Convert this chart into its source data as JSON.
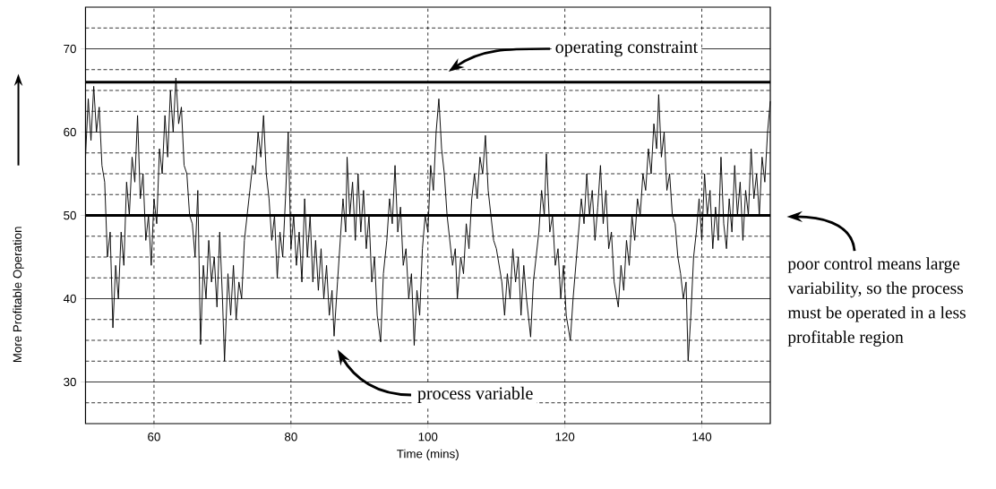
{
  "chart_data": {
    "type": "line",
    "xlabel": "Time (mins)",
    "ylabel": "More Profitable Operation",
    "color": "#000000",
    "xlim": [
      50,
      150
    ],
    "ylim": [
      25,
      75
    ],
    "xticks": [
      60,
      80,
      100,
      120,
      140
    ],
    "yticks": [
      {
        "value": 27.5,
        "label": null
      },
      30,
      {
        "value": 32.5,
        "label": null
      },
      {
        "value": 35,
        "label": null
      },
      {
        "value": 37.5,
        "label": null
      },
      40,
      {
        "value": 42.5,
        "label": null
      },
      {
        "value": 45,
        "label": null
      },
      {
        "value": 47.5,
        "label": null
      },
      50,
      {
        "value": 52.5,
        "label": null
      },
      {
        "value": 55,
        "label": null
      },
      {
        "value": 57.5,
        "label": null
      },
      60,
      {
        "value": 62.5,
        "label": null
      },
      {
        "value": 65,
        "label": null
      },
      {
        "value": 67.5,
        "label": null
      },
      70,
      {
        "value": 72.5,
        "label": null
      }
    ],
    "grid": true,
    "ref_lines": [
      {
        "axis": "y",
        "value": 66,
        "label": "operating constraint"
      },
      {
        "axis": "y",
        "value": 50
      }
    ],
    "annotations": [
      "process variable",
      "poor control means large variability, so the process must be operated in a less profitable region"
    ],
    "x": [
      50,
      50.4,
      50.8,
      51.2,
      51.6,
      52,
      52.4,
      52.8,
      53.2,
      53.6,
      54,
      54.4,
      54.8,
      55.2,
      55.6,
      56,
      56.4,
      56.8,
      57.2,
      57.6,
      58,
      58.4,
      58.8,
      59.2,
      59.6,
      60,
      60.4,
      60.8,
      61.2,
      61.6,
      62,
      62.4,
      62.8,
      63.2,
      63.6,
      64,
      64.4,
      64.8,
      65.2,
      65.6,
      66,
      66.4,
      66.8,
      67.2,
      67.6,
      68,
      68.4,
      68.8,
      69.2,
      69.6,
      70,
      70.3,
      70.8,
      71.2,
      71.6,
      72,
      72.4,
      72.8,
      73.2,
      73.6,
      74,
      74.4,
      74.8,
      75.2,
      75.6,
      76,
      76.4,
      76.8,
      77.2,
      77.6,
      78,
      78.4,
      78.8,
      79.2,
      79.6,
      80,
      80.4,
      80.8,
      81.2,
      81.6,
      82,
      82.4,
      82.8,
      83.2,
      83.6,
      84,
      84.4,
      84.8,
      85.2,
      85.6,
      86,
      86.3,
      86.8,
      87.2,
      87.6,
      88,
      88.2,
      88.6,
      89,
      89.4,
      89.8,
      90.2,
      90.6,
      91,
      91.4,
      91.8,
      92.2,
      92.6,
      93.1,
      93.5,
      94,
      94.4,
      94.8,
      95.2,
      95.6,
      96,
      96.4,
      96.8,
      97.2,
      97.6,
      98,
      98.4,
      98.8,
      99.2,
      99.6,
      100,
      100.4,
      100.8,
      101.2,
      101.6,
      102,
      102.4,
      102.8,
      103.2,
      103.6,
      104,
      104.3,
      104.8,
      105.2,
      105.6,
      106,
      106.4,
      106.8,
      107.2,
      107.6,
      108,
      108.4,
      108.8,
      109.2,
      109.6,
      110,
      110.4,
      110.8,
      111.2,
      111.6,
      112,
      112.4,
      112.8,
      113.2,
      113.6,
      114,
      114.4,
      115,
      115.4,
      115.8,
      116.2,
      116.6,
      117,
      117.3,
      117.8,
      118.2,
      118.6,
      119,
      119.4,
      119.8,
      120.2,
      120.8,
      121.2,
      121.6,
      122,
      122.4,
      122.8,
      123.2,
      123.6,
      124,
      124.4,
      124.8,
      125.2,
      125.6,
      126,
      126.4,
      126.8,
      127.2,
      127.8,
      128.2,
      128.6,
      129,
      129.4,
      129.8,
      130.2,
      130.6,
      131,
      131.4,
      131.8,
      132.2,
      132.6,
      133,
      133.4,
      133.7,
      134.1,
      134.5,
      134.9,
      135.3,
      135.7,
      136.1,
      136.5,
      136.9,
      137.3,
      137.7,
      138,
      138.4,
      138.8,
      139.2,
      139.6,
      140,
      140.4,
      140.8,
      141.2,
      141.6,
      142,
      142.4,
      142.8,
      143.2,
      143.6,
      144,
      144.4,
      144.8,
      145.2,
      145.6,
      146,
      146.4,
      146.8,
      147.2,
      147.6,
      148,
      148.4,
      148.8,
      149.2,
      149.6,
      150
    ],
    "values": [
      57,
      64,
      59,
      65.5,
      60,
      63,
      56,
      54,
      45,
      48,
      36.5,
      44,
      40,
      48,
      44,
      54,
      50,
      57,
      54,
      62,
      52,
      55,
      47,
      50,
      44,
      52,
      49,
      58,
      55,
      62,
      57,
      65,
      60,
      66.5,
      61,
      63,
      56,
      55,
      50,
      49,
      45,
      53,
      34.5,
      44,
      40,
      47,
      42,
      45,
      39,
      48,
      40,
      32.5,
      43,
      38,
      44,
      37.5,
      42,
      40,
      47,
      50,
      53,
      56,
      55,
      60,
      57,
      62,
      55,
      52,
      47,
      50,
      42.5,
      48,
      45,
      52,
      60,
      46,
      50,
      44,
      48,
      42,
      52,
      45,
      50,
      42,
      47,
      41,
      46,
      40,
      44,
      38,
      41,
      35.5,
      42,
      47,
      52,
      48,
      57,
      50,
      54,
      47,
      55,
      48,
      53,
      46,
      50,
      42,
      45,
      38,
      34.8,
      43,
      47,
      52,
      49,
      56,
      48,
      51,
      44,
      46,
      40,
      43,
      34.4,
      41,
      38,
      46,
      50,
      48,
      56,
      53,
      60,
      64,
      58,
      55,
      50,
      47,
      44,
      46,
      40,
      45,
      43,
      49,
      46,
      52,
      55,
      52,
      57,
      55,
      59.6,
      53,
      50,
      47,
      46,
      44,
      42,
      38,
      43,
      40,
      46,
      42,
      45,
      38,
      44,
      40,
      35.4,
      42,
      45,
      48,
      53,
      50,
      57.4,
      48,
      50,
      44,
      46,
      40,
      44,
      38,
      35,
      40,
      44,
      48,
      52,
      49,
      55,
      50,
      53,
      47,
      51,
      56,
      49,
      53,
      46,
      48,
      42,
      39,
      44,
      41,
      47,
      44,
      50,
      47,
      52,
      50,
      55,
      53,
      58,
      55,
      61,
      58,
      64.5,
      57,
      60,
      53,
      55,
      50,
      49,
      45,
      43,
      40,
      42,
      32.5,
      38,
      45,
      48,
      52,
      47,
      55,
      50,
      53,
      46,
      51,
      47,
      57,
      49,
      46,
      52,
      48,
      56,
      50,
      54,
      47,
      53,
      50,
      58,
      52,
      55,
      50,
      57,
      54,
      60,
      63.7
    ]
  }
}
